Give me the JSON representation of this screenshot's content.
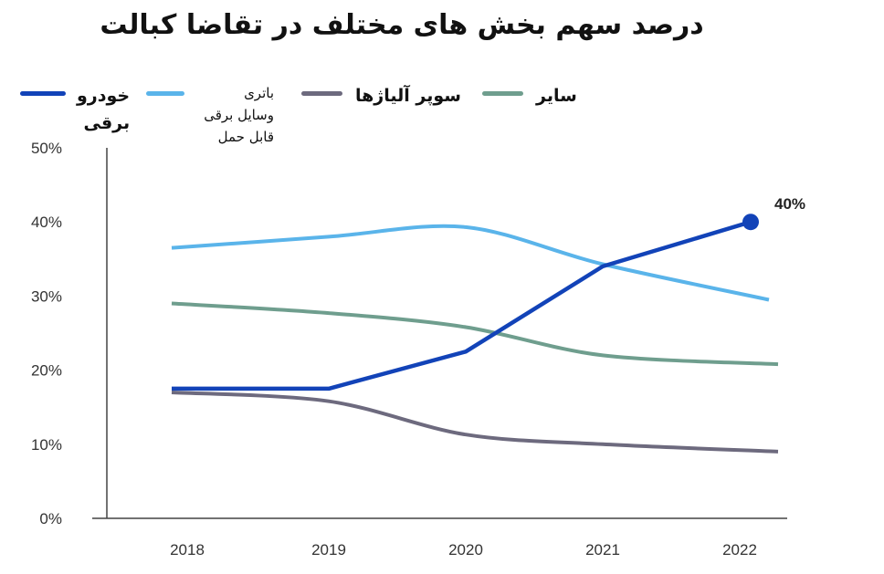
{
  "title": "درصد سهم بخش های مختلف در تقاضا کبالت",
  "legend": [
    {
      "label_line1": "خودرو",
      "label_line2": "برقی",
      "label_line3": "",
      "color": "#1243b8"
    },
    {
      "label_line1": "باتری",
      "label_line2": "وسایل برقی",
      "label_line3": "قابل حمل",
      "color": "#5ab4ea"
    },
    {
      "label_line1": "سوپر آلیاژها",
      "label_line2": "",
      "label_line3": "",
      "color": "#6d6a7e"
    },
    {
      "label_line1": "سایر",
      "label_line2": "",
      "label_line3": "",
      "color": "#6f9e8e"
    }
  ],
  "chart_data": {
    "type": "line",
    "title": "درصد سهم بخش های مختلف در تقاضا کبالت",
    "x": [
      "2018",
      "2019",
      "2020",
      "2021",
      "2022"
    ],
    "y_ticks": [
      "0%",
      "10%",
      "20%",
      "30%",
      "40%",
      "50%"
    ],
    "ylim": [
      0,
      50
    ],
    "grid": false,
    "legend_position": "top",
    "series": [
      {
        "name": "خودرو برقی",
        "color": "#1243b8",
        "values": [
          17.5,
          17.5,
          22.5,
          34,
          40
        ],
        "end_marker": true,
        "end_label": "40%"
      },
      {
        "name": "باتری وسایل برقی قابل حمل",
        "color": "#5ab4ea",
        "values": [
          36.5,
          38,
          39.3,
          34.3,
          29.5
        ]
      },
      {
        "name": "سوپر آلیاژها",
        "color": "#6d6a7e",
        "values": [
          17,
          15.8,
          11.3,
          10,
          9
        ]
      },
      {
        "name": "سایر",
        "color": "#6f9e8e",
        "values": [
          29,
          27.7,
          25.8,
          22,
          20.8
        ]
      }
    ]
  }
}
